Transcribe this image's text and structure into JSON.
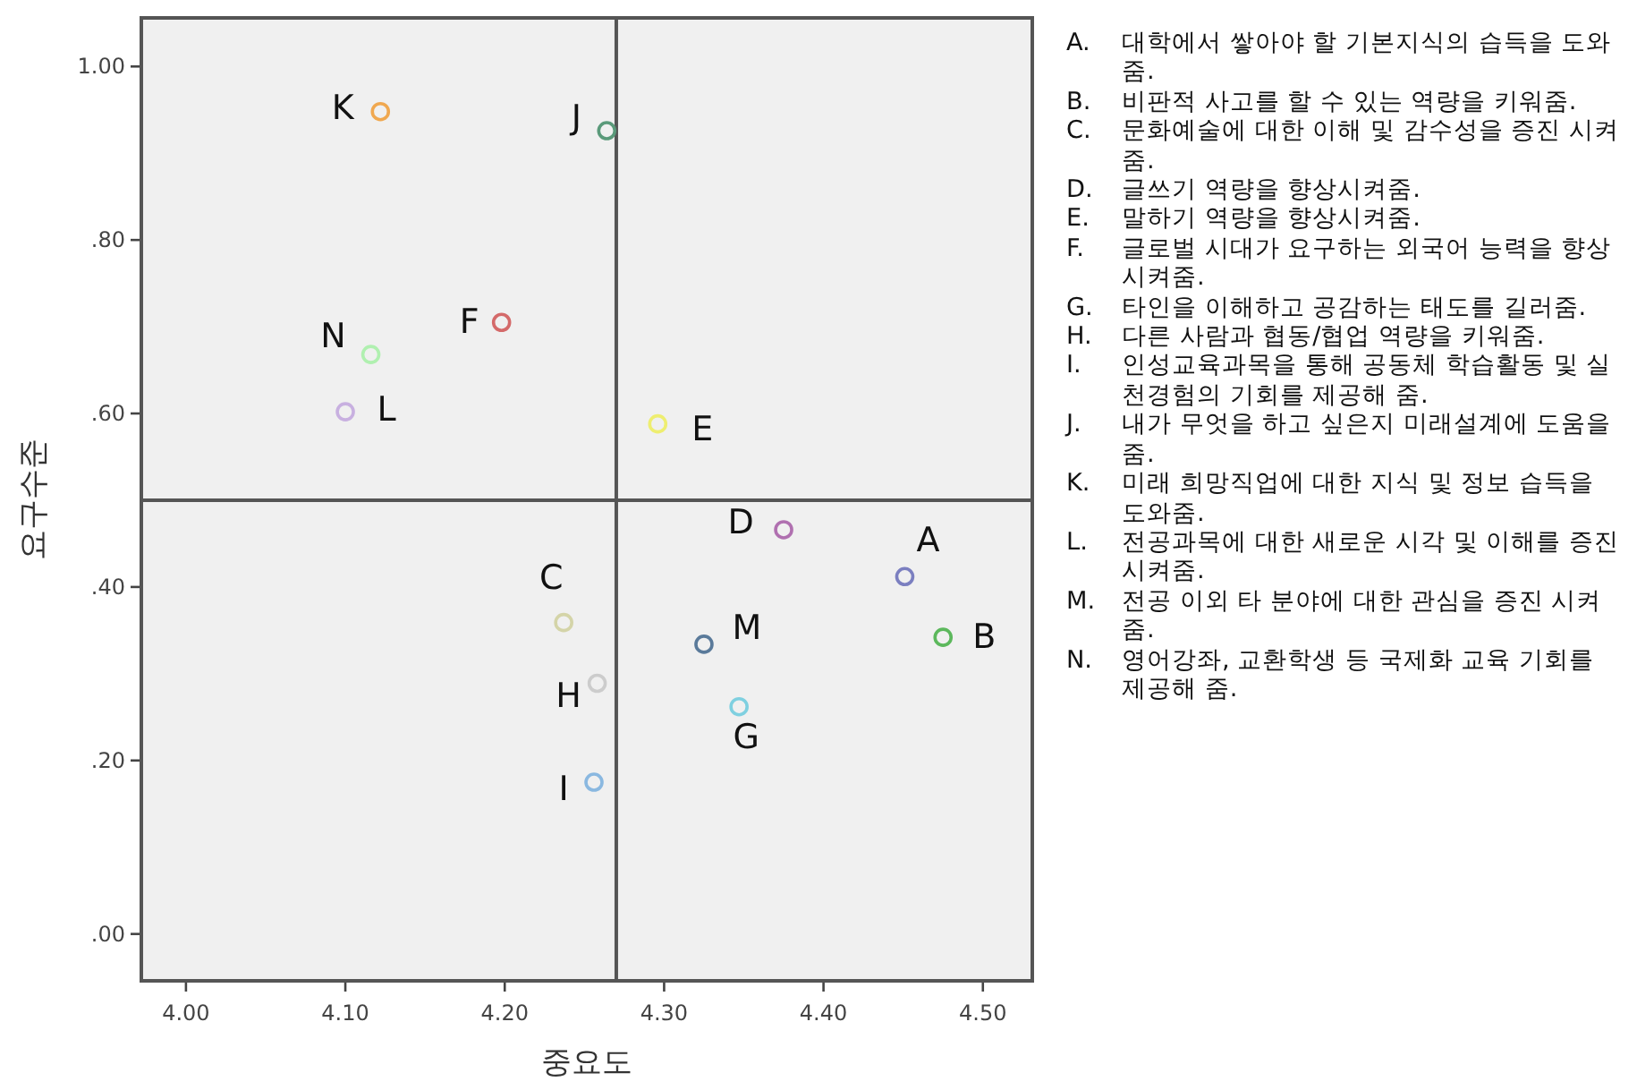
{
  "chart_data": {
    "type": "scatter",
    "xlabel": "중요도",
    "ylabel": "요구수준",
    "xlim": [
      3.972,
      4.531
    ],
    "ylim": [
      -0.054,
      1.056
    ],
    "xticks": [
      {
        "value": 4.0,
        "label": "4.00"
      },
      {
        "value": 4.1,
        "label": "4.10"
      },
      {
        "value": 4.2,
        "label": "4.20"
      },
      {
        "value": 4.3,
        "label": "4.30"
      },
      {
        "value": 4.4,
        "label": "4.40"
      },
      {
        "value": 4.5,
        "label": "4.50"
      }
    ],
    "yticks": [
      {
        "value": 0,
        "label": ".00"
      },
      {
        "value": 0.2,
        "label": ".20"
      },
      {
        "value": 0.4,
        "label": ".40"
      },
      {
        "value": 0.6,
        "label": ".60"
      },
      {
        "value": 0.8,
        "label": ".80"
      },
      {
        "value": 1.0,
        "label": "1.00"
      }
    ],
    "marker": "circle",
    "grid": false,
    "ref_lines": [
      {
        "axis": "x",
        "value": 4.27,
        "color": "#555555"
      },
      {
        "axis": "y",
        "value": 0.5,
        "color": "#555555"
      }
    ],
    "series": [
      {
        "name": "A",
        "color": "#7b7fc0",
        "x": [
          4.451
        ],
        "values": [
          0.412
        ]
      },
      {
        "name": "B",
        "color": "#5cb85c",
        "x": [
          4.475
        ],
        "values": [
          0.342
        ]
      },
      {
        "name": "C",
        "color": "#d4d4a8",
        "x": [
          4.237
        ],
        "values": [
          0.359
        ]
      },
      {
        "name": "D",
        "color": "#b070b0",
        "x": [
          4.375
        ],
        "values": [
          0.466
        ]
      },
      {
        "name": "E",
        "color": "#eeee70",
        "x": [
          4.296
        ],
        "values": [
          0.588
        ]
      },
      {
        "name": "F",
        "color": "#d46a6a",
        "x": [
          4.198
        ],
        "values": [
          0.705
        ]
      },
      {
        "name": "G",
        "color": "#7fd0e0",
        "x": [
          4.347
        ],
        "values": [
          0.262
        ]
      },
      {
        "name": "H",
        "color": "#cccccc",
        "x": [
          4.258
        ],
        "values": [
          0.289
        ]
      },
      {
        "name": "I",
        "color": "#8ab8e0",
        "x": [
          4.256
        ],
        "values": [
          0.175
        ]
      },
      {
        "name": "J",
        "color": "#5a9a7a",
        "x": [
          4.264
        ],
        "values": [
          0.926
        ]
      },
      {
        "name": "K",
        "color": "#f0a850",
        "x": [
          4.122
        ],
        "values": [
          0.948
        ]
      },
      {
        "name": "L",
        "color": "#c8b0e0",
        "x": [
          4.1
        ],
        "values": [
          0.602
        ]
      },
      {
        "name": "M",
        "color": "#5a7a9a",
        "x": [
          4.325
        ],
        "values": [
          0.334
        ]
      },
      {
        "name": "N",
        "color": "#b0f0b0",
        "x": [
          4.116
        ],
        "values": [
          0.668
        ]
      }
    ],
    "annotations": [
      "A. 대학에서 쌓아야 할 기본지식의 습득을 도와줌.",
      "B. 비판적 사고를 할 수 있는 역량을 키워줌.",
      "C. 문화예술에 대한 이해 및 감수성을 증진 시켜줌.",
      "D. 글쓰기 역량을 향상시켜줌.",
      "E. 말하기 역량을 향상시켜줌.",
      "F. 글로벌 시대가 요구하는 외국어 능력을 향상시켜줌.",
      "G. 타인을 이해하고 공감하는 태도를 길러줌.",
      "H. 다른 사람과 협동/협업 역량을 키워줌.",
      "I. 인성교육과목을 통해 공동체 학습활동 및 실천경험의 기회를 제공해 줌.",
      "J. 내가 무엇을 하고 싶은지 미래설계에 도움을 줌.",
      "K. 미래 희망직업에 대한 지식 및 정보 습득을 도와줌.",
      "L. 전공과목에 대한 새로운 시각 및 이해를 증진 시켜줌.",
      "M. 전공 이외 타 분야에 대한 관심을 증진 시켜줌.",
      "N. 영어강좌, 교환학생 등 국제화 교육 기회를 제공해 줌."
    ]
  }
}
